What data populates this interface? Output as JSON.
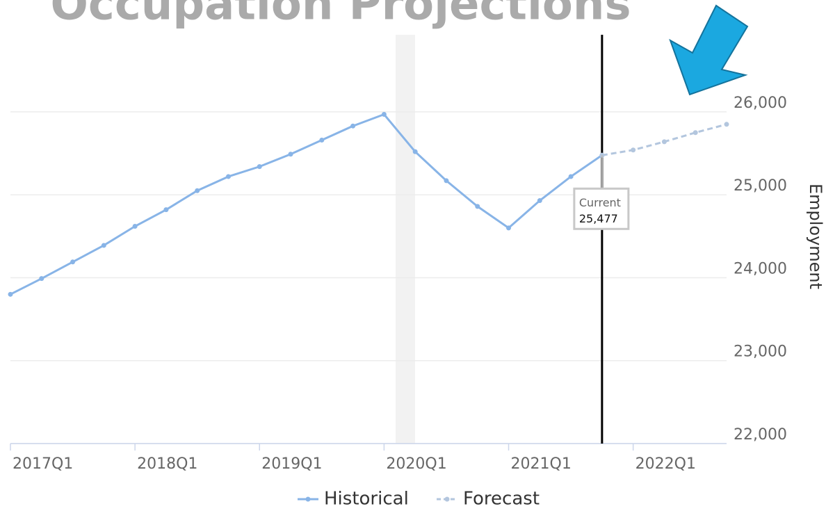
{
  "chart_data": {
    "type": "line",
    "title": "Occupation Projections",
    "y_axis_label": "Employment",
    "categories": [
      "2017Q1",
      null,
      null,
      null,
      "2018Q1",
      null,
      null,
      null,
      "2019Q1",
      null,
      null,
      null,
      "2020Q1",
      null,
      null,
      null,
      "2021Q1",
      null,
      null,
      null,
      "2022Q1",
      null,
      null,
      null
    ],
    "series": [
      {
        "name": "Historical",
        "color": "#88b4e7",
        "dashed": false,
        "values": [
          23800,
          23990,
          24190,
          24390,
          24620,
          24820,
          25050,
          25220,
          25340,
          25490,
          25660,
          25830,
          25970,
          25520,
          25170,
          24860,
          24600,
          24930,
          25220,
          25477,
          null,
          null,
          null,
          null
        ]
      },
      {
        "name": "Forecast",
        "color": "#b3c6de",
        "dashed": true,
        "values": [
          null,
          null,
          null,
          null,
          null,
          null,
          null,
          null,
          null,
          null,
          null,
          null,
          null,
          null,
          null,
          null,
          null,
          null,
          null,
          25477,
          25540,
          25640,
          25750,
          25850
        ]
      }
    ],
    "annotation": {
      "label": "Current",
      "value": 25477,
      "value_label": "25,477"
    },
    "ylim": [
      22000,
      26930
    ],
    "yticks": [
      {
        "value": 22000,
        "label": "22,000"
      },
      {
        "value": 23000,
        "label": "23,000"
      },
      {
        "value": 24000,
        "label": "24,000"
      },
      {
        "value": 25000,
        "label": "25,000"
      },
      {
        "value": 26000,
        "label": "26,000"
      }
    ],
    "grid": true
  }
}
